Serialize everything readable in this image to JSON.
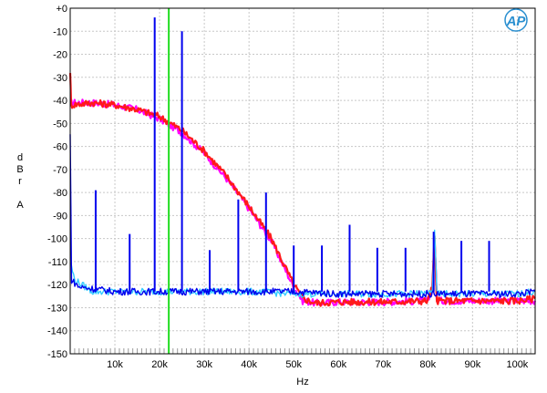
{
  "chart_data": {
    "type": "line",
    "xlabel": "Hz",
    "ylabel": [
      "d",
      "B",
      "r",
      "",
      "A"
    ],
    "xlim": [
      0,
      104000
    ],
    "ylim": [
      -150,
      0
    ],
    "grid": true,
    "x_ticks": [
      {
        "value": 10000,
        "label": "10k"
      },
      {
        "value": 20000,
        "label": "20k"
      },
      {
        "value": 30000,
        "label": "30k"
      },
      {
        "value": 40000,
        "label": "40k"
      },
      {
        "value": 50000,
        "label": "50k"
      },
      {
        "value": 60000,
        "label": "60k"
      },
      {
        "value": 70000,
        "label": "70k"
      },
      {
        "value": 80000,
        "label": "80k"
      },
      {
        "value": 90000,
        "label": "90k"
      },
      {
        "value": 100000,
        "label": "100k"
      }
    ],
    "y_ticks": [
      {
        "value": 0,
        "label": "+0"
      },
      {
        "value": -10,
        "label": "-10"
      },
      {
        "value": -20,
        "label": "-20"
      },
      {
        "value": -30,
        "label": "-30"
      },
      {
        "value": -40,
        "label": "-40"
      },
      {
        "value": -50,
        "label": "-50"
      },
      {
        "value": -60,
        "label": "-60"
      },
      {
        "value": -70,
        "label": "-70"
      },
      {
        "value": -80,
        "label": "-80"
      },
      {
        "value": -90,
        "label": "-90"
      },
      {
        "value": -100,
        "label": "-100"
      },
      {
        "value": -110,
        "label": "-110"
      },
      {
        "value": -120,
        "label": "-120"
      },
      {
        "value": -130,
        "label": "-130"
      },
      {
        "value": -140,
        "label": "-140"
      },
      {
        "value": -150,
        "label": "-150"
      }
    ],
    "logo_text": "AP",
    "marker_line": {
      "x": 22050,
      "color": "#22dd22"
    },
    "series": [
      {
        "color": "#ff00ff",
        "points": [
          [
            0,
            -41
          ],
          [
            5000,
            -41
          ],
          [
            10000,
            -42
          ],
          [
            15000,
            -44
          ],
          [
            20000,
            -48
          ],
          [
            25000,
            -54
          ],
          [
            30000,
            -63
          ],
          [
            35000,
            -74
          ],
          [
            40000,
            -87
          ],
          [
            45000,
            -101
          ],
          [
            48000,
            -113
          ],
          [
            50000,
            -121
          ],
          [
            52000,
            -127
          ],
          [
            55000,
            -128
          ],
          [
            60000,
            -127.5
          ],
          [
            70000,
            -127.5
          ],
          [
            80000,
            -127
          ],
          [
            81000,
            -122
          ],
          [
            81500,
            -100
          ],
          [
            82000,
            -127
          ],
          [
            90000,
            -127
          ],
          [
            100000,
            -127
          ],
          [
            104000,
            -127
          ]
        ]
      },
      {
        "color": "#ff1a1a",
        "points": [
          [
            0,
            -27
          ],
          [
            200,
            -42
          ],
          [
            5000,
            -41
          ],
          [
            10000,
            -42
          ],
          [
            15000,
            -44
          ],
          [
            20000,
            -47
          ],
          [
            25000,
            -53
          ],
          [
            30000,
            -62
          ],
          [
            35000,
            -73
          ],
          [
            40000,
            -86
          ],
          [
            45000,
            -100
          ],
          [
            48000,
            -112
          ],
          [
            50000,
            -120
          ],
          [
            52000,
            -126
          ],
          [
            55000,
            -128
          ],
          [
            60000,
            -127.5
          ],
          [
            70000,
            -127.5
          ],
          [
            80000,
            -127
          ],
          [
            81000,
            -121
          ],
          [
            81500,
            -100
          ],
          [
            82000,
            -127
          ],
          [
            90000,
            -127
          ],
          [
            100000,
            -127
          ],
          [
            104000,
            -126
          ]
        ]
      },
      {
        "color": "#33ccff",
        "points": [
          [
            0,
            -110
          ],
          [
            1000,
            -118
          ],
          [
            5000,
            -123
          ],
          [
            10000,
            -123
          ],
          [
            20000,
            -123
          ],
          [
            30000,
            -123
          ],
          [
            40000,
            -123
          ],
          [
            50000,
            -124
          ],
          [
            60000,
            -124
          ],
          [
            70000,
            -124
          ],
          [
            80000,
            -124
          ],
          [
            81000,
            -122
          ],
          [
            81500,
            -96
          ],
          [
            82000,
            -124
          ],
          [
            90000,
            -124
          ],
          [
            100000,
            -124
          ],
          [
            104000,
            -123
          ]
        ]
      },
      {
        "color": "#0000ee",
        "points": [
          [
            0,
            -55
          ],
          [
            300,
            -118
          ],
          [
            2000,
            -121
          ],
          [
            10000,
            -123
          ],
          [
            20000,
            -123
          ],
          [
            30000,
            -123
          ],
          [
            40000,
            -123
          ],
          [
            50000,
            -123
          ],
          [
            60000,
            -124
          ],
          [
            70000,
            -124
          ],
          [
            80000,
            -124
          ],
          [
            90000,
            -124
          ],
          [
            100000,
            -124
          ],
          [
            104000,
            -123
          ]
        ],
        "spikes": [
          {
            "x": 5700,
            "y": -79
          },
          {
            "x": 13300,
            "y": -98
          },
          {
            "x": 18900,
            "y": -4
          },
          {
            "x": 25000,
            "y": -10
          },
          {
            "x": 31200,
            "y": -105
          },
          {
            "x": 37600,
            "y": -83
          },
          {
            "x": 43800,
            "y": -80
          },
          {
            "x": 50000,
            "y": -103
          },
          {
            "x": 56300,
            "y": -103
          },
          {
            "x": 62500,
            "y": -94
          },
          {
            "x": 68700,
            "y": -104
          },
          {
            "x": 75000,
            "y": -104
          },
          {
            "x": 81300,
            "y": -97
          },
          {
            "x": 87500,
            "y": -101
          },
          {
            "x": 93700,
            "y": -101
          }
        ]
      }
    ]
  }
}
